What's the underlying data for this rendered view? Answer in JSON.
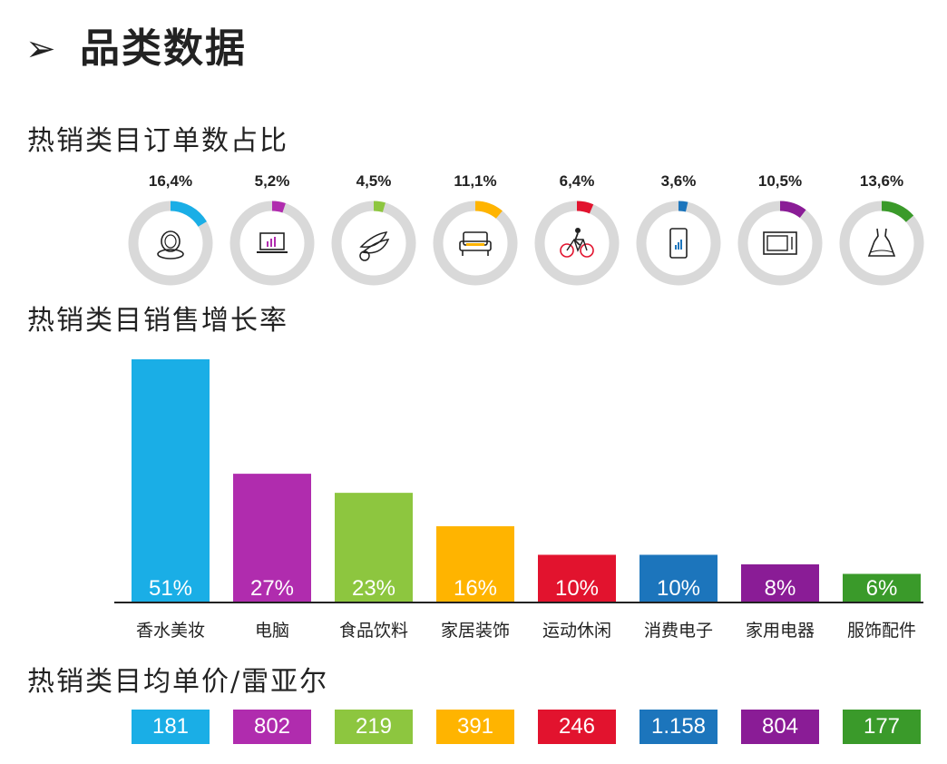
{
  "header": {
    "arrow": "➢",
    "title": "品类数据"
  },
  "sections": {
    "orders": "热销类目订单数占比",
    "growth": "热销类目销售增长率",
    "price": "热销类目均单价/雷亚尔"
  },
  "colors": {
    "ring_bg": "#d9d9d9",
    "perfume": "#1aaee6",
    "computer": "#b02cae",
    "food": "#8dc63f",
    "home": "#ffb400",
    "sports": "#e2132e",
    "electronics": "#1c75bc",
    "appliances": "#8a1c96",
    "apparel": "#3a9a2a"
  },
  "chart_data": [
    {
      "type": "pie",
      "title": "热销类目订单数占比",
      "categories": [
        "香水美妆",
        "电脑",
        "食品饮料",
        "家居装饰",
        "运动休闲",
        "消费电子",
        "家用电器",
        "服饰配件"
      ],
      "labels": [
        "16,4%",
        "5,2%",
        "4,5%",
        "11,1%",
        "6,4%",
        "3,6%",
        "10,5%",
        "13,6%"
      ],
      "values": [
        16.4,
        5.2,
        4.5,
        11.1,
        6.4,
        3.6,
        10.5,
        13.6
      ],
      "icons": [
        "compact-mirror-icon",
        "laptop-chart-icon",
        "fruit-icon",
        "armchair-icon",
        "bicycle-icon",
        "smartphone-icon",
        "microwave-icon",
        "dress-icon"
      ]
    },
    {
      "type": "bar",
      "title": "热销类目销售增长率",
      "categories": [
        "香水美妆",
        "电脑",
        "食品饮料",
        "家居装饰",
        "运动休闲",
        "消费电子",
        "家用电器",
        "服饰配件"
      ],
      "values": [
        51,
        27,
        23,
        16,
        10,
        10,
        8,
        6
      ],
      "labels": [
        "51%",
        "27%",
        "23%",
        "16%",
        "10%",
        "10%",
        "8%",
        "6%"
      ],
      "ylim": [
        0,
        51
      ]
    },
    {
      "type": "table",
      "title": "热销类目均单价/雷亚尔",
      "categories": [
        "香水美妆",
        "电脑",
        "食品饮料",
        "家居装饰",
        "运动休闲",
        "消费电子",
        "家用电器",
        "服饰配件"
      ],
      "values": [
        "181",
        "802",
        "219",
        "391",
        "246",
        "1.158",
        "804",
        "177"
      ]
    }
  ]
}
